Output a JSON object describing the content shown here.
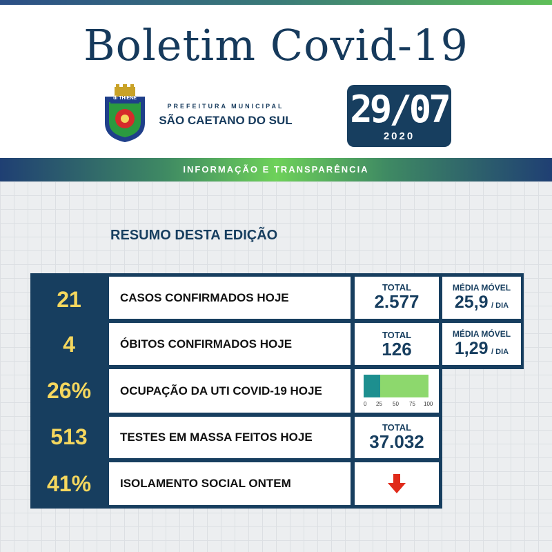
{
  "header": {
    "title": "Boletim Covid-19",
    "prefeitura_small": "PREFEITURA MUNICIPAL",
    "prefeitura_city": "SÃO CAETANO DO SUL",
    "date": "29/07",
    "year": "2020",
    "band_text": "INFORMAÇÃO E TRANSPARÊNCIA"
  },
  "crest_text": "di THIENE",
  "section_title": "RESUMO DESTA EDIÇÃO",
  "rows": [
    {
      "value": "21",
      "label": "CASOS CONFIRMADOS HOJE",
      "total_label": "TOTAL",
      "total": "2.577",
      "mm_label": "MÉDIA MÓVEL",
      "mm_value": "25,9",
      "mm_unit": "/ DIA"
    },
    {
      "value": "4",
      "label": "ÓBITOS CONFIRMADOS HOJE",
      "total_label": "TOTAL",
      "total": "126",
      "mm_label": "MÉDIA MÓVEL",
      "mm_value": "1,29",
      "mm_unit": "/ DIA"
    },
    {
      "value": "26%",
      "label": "OCUPAÇÃO DA UTI COVID-19 HOJE",
      "occupancy_percent": 26,
      "ticks": [
        "0",
        "25",
        "50",
        "75",
        "100"
      ]
    },
    {
      "value": "513",
      "label": "TESTES EM MASSA FEITOS HOJE",
      "total_label": "TOTAL",
      "total": "37.032"
    },
    {
      "value": "41%",
      "label": "ISOLAMENTO SOCIAL ONTEM",
      "trend": "down-arrow-icon"
    }
  ],
  "colors": {
    "navy": "#173e5f",
    "yellow": "#f5d75e",
    "bar_fill": "#1d8f8f",
    "bar_bg": "#8dd86d",
    "arrow": "#e02a1a"
  }
}
